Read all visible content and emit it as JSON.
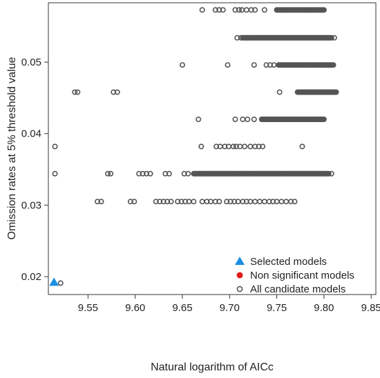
{
  "chart_data": {
    "type": "scatter",
    "xlabel": "Natural logarithm of AICc",
    "ylabel": "Omission rates at 5% threshold value",
    "xlim": [
      9.508,
      9.855
    ],
    "ylim": [
      0.0175,
      0.0583
    ],
    "x_ticks": [
      "9.55",
      "9.60",
      "9.65",
      "9.70",
      "9.75",
      "9.80",
      "9.85"
    ],
    "y_ticks": [
      "0.02",
      "0.03",
      "0.04",
      "0.05"
    ],
    "grid": false,
    "legend_position": "bottom-right",
    "legend": [
      {
        "name": "Selected models",
        "marker": "triangle",
        "color": "#1a8fe3"
      },
      {
        "name": "Non significant models",
        "marker": "filled-circle",
        "color": "#e31a1c"
      },
      {
        "name": "All candidate models",
        "marker": "open-circle",
        "color": "#555555"
      }
    ],
    "series": [
      {
        "name": "Selected models",
        "marker": "triangle",
        "color": "#1a8fe3",
        "points": [
          [
            9.514,
            0.0192
          ]
        ]
      },
      {
        "name": "Non significant models",
        "marker": "filled-circle",
        "color": "#e31a1c",
        "points": []
      },
      {
        "name": "All candidate models",
        "marker": "open-circle",
        "color": "#555555",
        "points": [
          [
            9.521,
            0.0191
          ],
          [
            9.515,
            0.0382
          ],
          [
            9.671,
            0.0573
          ],
          [
            9.685,
            0.0573
          ],
          [
            9.689,
            0.0573
          ],
          [
            9.693,
            0.0573
          ],
          [
            9.706,
            0.0573
          ],
          [
            9.71,
            0.0573
          ],
          [
            9.713,
            0.0573
          ],
          [
            9.718,
            0.0573
          ],
          [
            9.723,
            0.0573
          ],
          [
            9.727,
            0.0573
          ],
          [
            9.737,
            0.0573
          ],
          [
            9.708,
            0.0534
          ],
          [
            9.712,
            0.0534
          ],
          [
            9.811,
            0.0534
          ],
          [
            9.65,
            0.0496
          ],
          [
            9.698,
            0.0496
          ],
          [
            9.726,
            0.0496
          ],
          [
            9.739,
            0.0496
          ],
          [
            9.743,
            0.0496
          ],
          [
            9.747,
            0.0496
          ],
          [
            9.536,
            0.0458
          ],
          [
            9.539,
            0.0458
          ],
          [
            9.577,
            0.0458
          ],
          [
            9.581,
            0.0458
          ],
          [
            9.753,
            0.0458
          ],
          [
            9.667,
            0.042
          ],
          [
            9.706,
            0.042
          ],
          [
            9.714,
            0.042
          ],
          [
            9.719,
            0.042
          ],
          [
            9.726,
            0.042
          ],
          [
            9.67,
            0.0382
          ],
          [
            9.686,
            0.0382
          ],
          [
            9.69,
            0.0382
          ],
          [
            9.695,
            0.0382
          ],
          [
            9.699,
            0.0382
          ],
          [
            9.704,
            0.0382
          ],
          [
            9.707,
            0.0382
          ],
          [
            9.711,
            0.0382
          ],
          [
            9.716,
            0.0382
          ],
          [
            9.722,
            0.0382
          ],
          [
            9.727,
            0.0382
          ],
          [
            9.731,
            0.0382
          ],
          [
            9.735,
            0.0382
          ],
          [
            9.777,
            0.0382
          ],
          [
            9.515,
            0.0344
          ],
          [
            9.571,
            0.0344
          ],
          [
            9.574,
            0.0344
          ],
          [
            9.604,
            0.0344
          ],
          [
            9.608,
            0.0344
          ],
          [
            9.612,
            0.0344
          ],
          [
            9.616,
            0.0344
          ],
          [
            9.632,
            0.0344
          ],
          [
            9.636,
            0.0344
          ],
          [
            9.652,
            0.0344
          ],
          [
            9.656,
            0.0344
          ],
          [
            9.808,
            0.0344
          ],
          [
            9.56,
            0.0305
          ],
          [
            9.564,
            0.0305
          ],
          [
            9.595,
            0.0305
          ],
          [
            9.599,
            0.0305
          ],
          [
            9.622,
            0.0305
          ],
          [
            9.626,
            0.0305
          ],
          [
            9.63,
            0.0305
          ],
          [
            9.634,
            0.0305
          ],
          [
            9.638,
            0.0305
          ],
          [
            9.645,
            0.0305
          ],
          [
            9.649,
            0.0305
          ],
          [
            9.653,
            0.0305
          ],
          [
            9.657,
            0.0305
          ],
          [
            9.662,
            0.0305
          ],
          [
            9.671,
            0.0305
          ],
          [
            9.676,
            0.0305
          ],
          [
            9.68,
            0.0305
          ],
          [
            9.685,
            0.0305
          ],
          [
            9.689,
            0.0305
          ],
          [
            9.697,
            0.0305
          ],
          [
            9.701,
            0.0305
          ],
          [
            9.705,
            0.0305
          ],
          [
            9.709,
            0.0305
          ],
          [
            9.714,
            0.0305
          ],
          [
            9.718,
            0.0305
          ],
          [
            9.722,
            0.0305
          ],
          [
            9.727,
            0.0305
          ],
          [
            9.732,
            0.0305
          ],
          [
            9.737,
            0.0305
          ],
          [
            9.742,
            0.0305
          ],
          [
            9.746,
            0.0305
          ],
          [
            9.75,
            0.0305
          ],
          [
            9.755,
            0.0305
          ],
          [
            9.76,
            0.0305
          ],
          [
            9.765,
            0.0305
          ],
          [
            9.769,
            0.0305
          ]
        ],
        "bands": [
          {
            "x": [
              9.75,
              9.8
            ],
            "y": 0.0573,
            "step": 0.001
          },
          {
            "x": [
              9.714,
              9.808
            ],
            "y": 0.0534,
            "step": 0.001
          },
          {
            "x": [
              9.752,
              9.81
            ],
            "y": 0.0496,
            "step": 0.001
          },
          {
            "x": [
              9.772,
              9.813
            ],
            "y": 0.0458,
            "step": 0.001
          },
          {
            "x": [
              9.734,
              9.8
            ],
            "y": 0.042,
            "step": 0.001
          },
          {
            "x": [
              9.662,
              9.805
            ],
            "y": 0.0344,
            "step": 0.001
          }
        ]
      }
    ]
  }
}
